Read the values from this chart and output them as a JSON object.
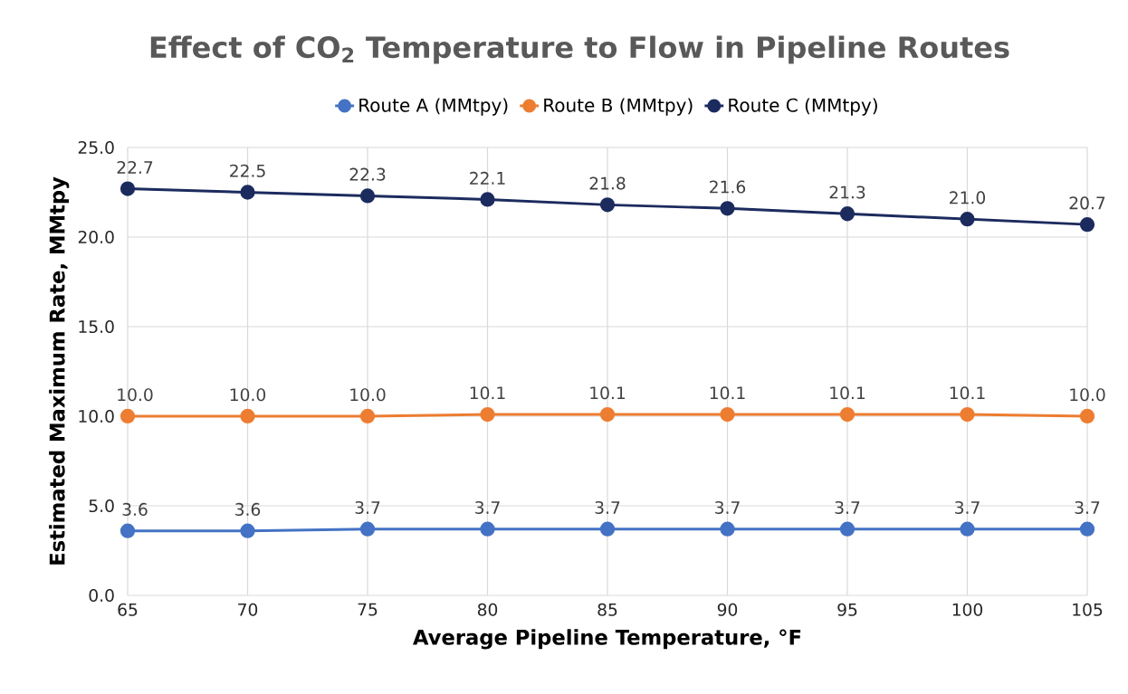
{
  "chart_data": {
    "type": "line",
    "title": "Effect of CO$_{2}$ Temperature to Flow in Pipeline Routes",
    "xlabel": "Average Pipeline Temperature, °F",
    "ylabel": "Estimated Maximum Rate, MMtpy",
    "x": [
      65,
      70,
      75,
      80,
      85,
      90,
      95,
      100,
      105
    ],
    "series": [
      {
        "name": "Route A (MMtpy)",
        "color": "#4472c4",
        "values": [
          3.6,
          3.6,
          3.7,
          3.7,
          3.7,
          3.7,
          3.7,
          3.7,
          3.7
        ],
        "value_labels": [
          "3.6",
          "3.6",
          "3.7",
          "3.7",
          "3.7",
          "3.7",
          "3.7",
          "3.7",
          "3.7"
        ]
      },
      {
        "name": "Route B (MMtpy)",
        "color": "#ed7d31",
        "values": [
          10.0,
          10.0,
          10.0,
          10.1,
          10.1,
          10.1,
          10.1,
          10.1,
          10.0
        ],
        "value_labels": [
          "10.0",
          "10.0",
          "10.0",
          "10.1",
          "10.1",
          "10.1",
          "10.1",
          "10.1",
          "10.0"
        ]
      },
      {
        "name": "Route C (MMtpy)",
        "color": "#1c2b5e",
        "values": [
          22.7,
          22.5,
          22.3,
          22.1,
          21.8,
          21.6,
          21.3,
          21.0,
          20.7
        ],
        "value_labels": [
          "22.7",
          "22.5",
          "22.3",
          "22.1",
          "21.8",
          "21.6",
          "21.3",
          "21.0",
          "20.7"
        ]
      }
    ],
    "xlim": [
      65,
      105
    ],
    "xticks": [
      65,
      70,
      75,
      80,
      85,
      90,
      95,
      100,
      105
    ],
    "ylim": [
      0,
      25
    ],
    "yticks": [
      {
        "value": 0,
        "label": "0.0"
      },
      {
        "value": 5,
        "label": "5.0"
      },
      {
        "value": 10,
        "label": "10.0"
      },
      {
        "value": 15,
        "label": "15.0"
      },
      {
        "value": 20,
        "label": "20.0"
      },
      {
        "value": 25,
        "label": "25.0"
      }
    ],
    "grid": true,
    "legend": "top",
    "marker": "circle",
    "line_style": "solid"
  }
}
